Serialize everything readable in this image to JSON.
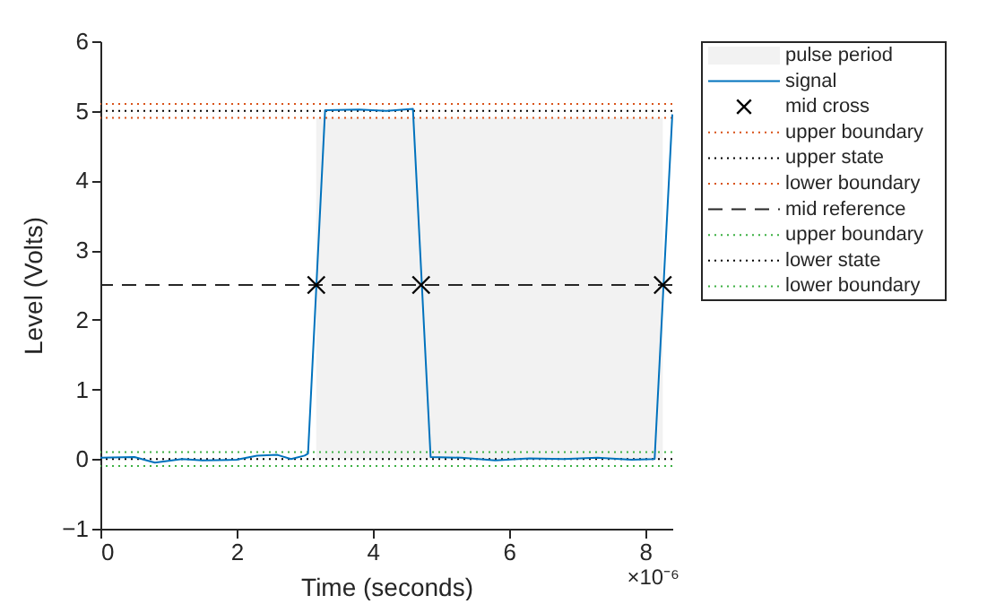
{
  "chart_data": {
    "type": "line",
    "xlabel": "Time (seconds)",
    "ylabel": "Level (Volts)",
    "xlim": [
      0,
      8.4
    ],
    "xticks": [
      0,
      2,
      4,
      6,
      8
    ],
    "ylim": [
      -1,
      6
    ],
    "yticks": [
      -1,
      0,
      1,
      2,
      3,
      4,
      5,
      6
    ],
    "grid": false,
    "legend": "right",
    "annotations": [
      "×10⁻⁶"
    ],
    "series": [
      {
        "name": "pulse period",
        "type": "area",
        "color": "#f2f2f2",
        "x": [
          3.17,
          8.26
        ],
        "values": [
          4.9,
          4.9
        ]
      },
      {
        "name": "signal",
        "type": "line",
        "color": "#0072bd",
        "x": [
          0,
          0.5,
          0.8,
          1.2,
          1.5,
          2.0,
          2.3,
          2.6,
          2.8,
          3.0,
          3.05,
          3.3,
          3.8,
          4.2,
          4.59,
          4.85,
          5.3,
          5.8,
          6.3,
          6.8,
          7.3,
          7.8,
          8.14,
          8.4
        ],
        "values": [
          0.02,
          0.03,
          -0.05,
          0.0,
          -0.02,
          -0.01,
          0.05,
          0.06,
          0.0,
          0.05,
          0.08,
          5.01,
          5.02,
          5.0,
          5.03,
          0.03,
          0.02,
          -0.02,
          0.01,
          0.0,
          0.02,
          -0.01,
          0.0,
          4.95
        ]
      },
      {
        "name": "mid cross",
        "type": "scatter",
        "marker": "cross",
        "color": "#000000",
        "x": [
          3.17,
          4.71,
          8.26
        ],
        "values": [
          2.5,
          2.5,
          2.5
        ]
      }
    ],
    "ref_lines": [
      {
        "axis": "y",
        "value": 5.1,
        "label": "upper boundary",
        "color": "#d95319",
        "line_style": "dotted"
      },
      {
        "axis": "y",
        "value": 5.0,
        "label": "upper state",
        "color": "#000000",
        "line_style": "dotted"
      },
      {
        "axis": "y",
        "value": 4.9,
        "label": "lower boundary",
        "color": "#d95319",
        "line_style": "dotted"
      },
      {
        "axis": "y",
        "value": 2.5,
        "label": "mid reference",
        "color": "#262626",
        "line_style": "dashed"
      },
      {
        "axis": "y",
        "value": 0.1,
        "label": "upper boundary",
        "color": "#3cb043",
        "line_style": "dotted"
      },
      {
        "axis": "y",
        "value": 0.0,
        "label": "lower state",
        "color": "#000000",
        "line_style": "dotted"
      },
      {
        "axis": "y",
        "value": -0.1,
        "label": "lower boundary",
        "color": "#3cb043",
        "line_style": "dotted"
      }
    ]
  }
}
